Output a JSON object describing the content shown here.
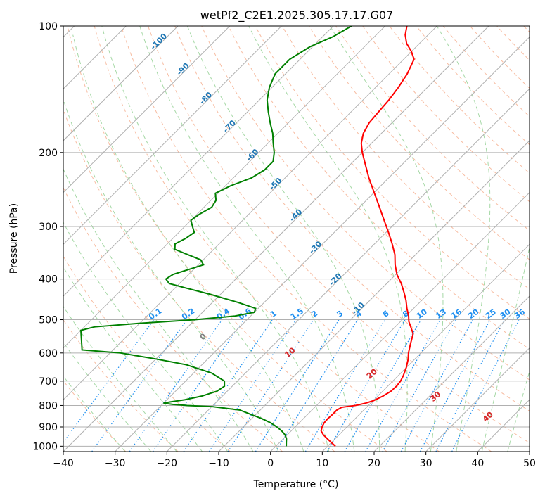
{
  "chart_data": {
    "type": "line",
    "title": "wetPf2_C2E1.2025.305.17.17.G07",
    "xlabel": "Temperature (°C)",
    "ylabel": "Pressure (hPa)",
    "xlim": [
      -40,
      50
    ],
    "ylim": [
      1030,
      100
    ],
    "yscale": "log",
    "skew": 45,
    "grid": true,
    "x_ticks": [
      "−40",
      "−30",
      "−20",
      "−10",
      "0",
      "10",
      "20",
      "30",
      "40",
      "50"
    ],
    "y_ticks": [
      {
        "p": 100,
        "label": "100"
      },
      {
        "p": 200,
        "label": "200"
      },
      {
        "p": 300,
        "label": "300"
      },
      {
        "p": 400,
        "label": "400"
      },
      {
        "p": 500,
        "label": "500"
      },
      {
        "p": 600,
        "label": "600"
      },
      {
        "p": 700,
        "label": "700"
      },
      {
        "p": 800,
        "label": "800"
      },
      {
        "p": 900,
        "label": "900"
      },
      {
        "p": 1000,
        "label": "1000"
      }
    ],
    "colors": {
      "temperature": "#ff0000",
      "dewpoint": "#008000",
      "isotherm": "#b0b0b0",
      "dry_adiabat": "#f4a582",
      "moist_adiabat": "#8fce8f",
      "mixing_ratio": "#1f8ff0",
      "isotherm_label": "#1f77b4",
      "mixing_label": "#1f8ff0",
      "moist_label": "#d62728",
      "zero_label": "#808080"
    },
    "temperature": [
      {
        "p": 1000,
        "t": 11.5
      },
      {
        "p": 980,
        "t": 10.0
      },
      {
        "p": 960,
        "t": 8.5
      },
      {
        "p": 940,
        "t": 7.0
      },
      {
        "p": 920,
        "t": 5.8
      },
      {
        "p": 900,
        "t": 5.2
      },
      {
        "p": 880,
        "t": 4.8
      },
      {
        "p": 860,
        "t": 4.7
      },
      {
        "p": 840,
        "t": 4.8
      },
      {
        "p": 820,
        "t": 4.8
      },
      {
        "p": 808,
        "t": 5.2
      },
      {
        "p": 800,
        "t": 7.5
      },
      {
        "p": 790,
        "t": 9.0
      },
      {
        "p": 780,
        "t": 10.0
      },
      {
        "p": 760,
        "t": 11.0
      },
      {
        "p": 740,
        "t": 11.6
      },
      {
        "p": 720,
        "t": 11.7
      },
      {
        "p": 700,
        "t": 11.5
      },
      {
        "p": 680,
        "t": 11.0
      },
      {
        "p": 650,
        "t": 10.0
      },
      {
        "p": 620,
        "t": 8.7
      },
      {
        "p": 600,
        "t": 7.6
      },
      {
        "p": 570,
        "t": 6.2
      },
      {
        "p": 540,
        "t": 4.8
      },
      {
        "p": 520,
        "t": 3.0
      },
      {
        "p": 505,
        "t": 1.6
      },
      {
        "p": 490,
        "t": 0.5
      },
      {
        "p": 470,
        "t": -1.3
      },
      {
        "p": 450,
        "t": -3.0
      },
      {
        "p": 430,
        "t": -5.0
      },
      {
        "p": 410,
        "t": -7.2
      },
      {
        "p": 390,
        "t": -9.8
      },
      {
        "p": 370,
        "t": -12.0
      },
      {
        "p": 350,
        "t": -14.0
      },
      {
        "p": 330,
        "t": -16.6
      },
      {
        "p": 310,
        "t": -19.5
      },
      {
        "p": 290,
        "t": -22.7
      },
      {
        "p": 270,
        "t": -26.1
      },
      {
        "p": 250,
        "t": -29.8
      },
      {
        "p": 230,
        "t": -33.8
      },
      {
        "p": 215,
        "t": -36.8
      },
      {
        "p": 200,
        "t": -40.0
      },
      {
        "p": 190,
        "t": -42.0
      },
      {
        "p": 180,
        "t": -43.5
      },
      {
        "p": 170,
        "t": -44.4
      },
      {
        "p": 160,
        "t": -44.7
      },
      {
        "p": 150,
        "t": -45.0
      },
      {
        "p": 140,
        "t": -45.6
      },
      {
        "p": 130,
        "t": -46.5
      },
      {
        "p": 120,
        "t": -48.0
      },
      {
        "p": 115,
        "t": -50.0
      },
      {
        "p": 110,
        "t": -52.5
      },
      {
        "p": 105,
        "t": -54.4
      },
      {
        "p": 100,
        "t": -55.8
      }
    ],
    "dewpoint": [
      {
        "p": 1000,
        "t": 2.0
      },
      {
        "p": 980,
        "t": 1.3
      },
      {
        "p": 960,
        "t": 0.6
      },
      {
        "p": 940,
        "t": -0.4
      },
      {
        "p": 920,
        "t": -1.8
      },
      {
        "p": 900,
        "t": -3.5
      },
      {
        "p": 880,
        "t": -5.5
      },
      {
        "p": 860,
        "t": -8.0
      },
      {
        "p": 840,
        "t": -11.0
      },
      {
        "p": 820,
        "t": -14.0
      },
      {
        "p": 805,
        "t": -20.0
      },
      {
        "p": 800,
        "t": -25.0
      },
      {
        "p": 795,
        "t": -28.0
      },
      {
        "p": 790,
        "t": -30.0
      },
      {
        "p": 785,
        "t": -29.0
      },
      {
        "p": 775,
        "t": -26.5
      },
      {
        "p": 760,
        "t": -24.0
      },
      {
        "p": 740,
        "t": -22.0
      },
      {
        "p": 720,
        "t": -21.5
      },
      {
        "p": 700,
        "t": -22.5
      },
      {
        "p": 670,
        "t": -26.5
      },
      {
        "p": 640,
        "t": -33.0
      },
      {
        "p": 620,
        "t": -40.0
      },
      {
        "p": 600,
        "t": -48.0
      },
      {
        "p": 590,
        "t": -56.0
      },
      {
        "p": 530,
        "t": -60.0
      },
      {
        "p": 520,
        "t": -58.0
      },
      {
        "p": 510,
        "t": -50.0
      },
      {
        "p": 500,
        "t": -40.0
      },
      {
        "p": 490,
        "t": -33.0
      },
      {
        "p": 480,
        "t": -30.0
      },
      {
        "p": 470,
        "t": -30.5
      },
      {
        "p": 455,
        "t": -35.0
      },
      {
        "p": 435,
        "t": -42.0
      },
      {
        "p": 420,
        "t": -48.0
      },
      {
        "p": 410,
        "t": -52.0
      },
      {
        "p": 400,
        "t": -53.5
      },
      {
        "p": 390,
        "t": -53.0
      },
      {
        "p": 380,
        "t": -51.0
      },
      {
        "p": 370,
        "t": -49.0
      },
      {
        "p": 360,
        "t": -50.5
      },
      {
        "p": 350,
        "t": -54.0
      },
      {
        "p": 340,
        "t": -57.5
      },
      {
        "p": 330,
        "t": -58.5
      },
      {
        "p": 320,
        "t": -57.5
      },
      {
        "p": 310,
        "t": -57.0
      },
      {
        "p": 300,
        "t": -58.5
      },
      {
        "p": 290,
        "t": -60.0
      },
      {
        "p": 280,
        "t": -59.5
      },
      {
        "p": 270,
        "t": -58.5
      },
      {
        "p": 260,
        "t": -59.0
      },
      {
        "p": 250,
        "t": -60.5
      },
      {
        "p": 240,
        "t": -59.0
      },
      {
        "p": 230,
        "t": -56.5
      },
      {
        "p": 220,
        "t": -55.5
      },
      {
        "p": 210,
        "t": -55.5
      },
      {
        "p": 200,
        "t": -57.0
      },
      {
        "p": 190,
        "t": -59.0
      },
      {
        "p": 180,
        "t": -61.0
      },
      {
        "p": 170,
        "t": -63.5
      },
      {
        "p": 160,
        "t": -66.0
      },
      {
        "p": 150,
        "t": -68.5
      },
      {
        "p": 140,
        "t": -70.5
      },
      {
        "p": 130,
        "t": -72.0
      },
      {
        "p": 120,
        "t": -72.0
      },
      {
        "p": 112,
        "t": -70.5
      },
      {
        "p": 106,
        "t": -68.0
      },
      {
        "p": 100,
        "t": -66.5
      }
    ],
    "isotherm_labels": [
      {
        "t": -100,
        "label": "-100"
      },
      {
        "t": -90,
        "label": "-90"
      },
      {
        "t": -80,
        "label": "-80"
      },
      {
        "t": -70,
        "label": "-70"
      },
      {
        "t": -60,
        "label": "-60"
      },
      {
        "t": -50,
        "label": "-50"
      },
      {
        "t": -40,
        "label": "-40"
      },
      {
        "t": -30,
        "label": "-30"
      },
      {
        "t": -20,
        "label": "-20"
      },
      {
        "t": -10,
        "label": "-10"
      }
    ],
    "mixing_ratio_labels": [
      {
        "w": 0.1,
        "label": "0.1"
      },
      {
        "w": 0.2,
        "label": "0.2"
      },
      {
        "w": 0.4,
        "label": "0.4"
      },
      {
        "w": 0.6,
        "label": "0.6"
      },
      {
        "w": 1,
        "label": "1"
      },
      {
        "w": 1.5,
        "label": "1.5"
      },
      {
        "w": 2,
        "label": "2"
      },
      {
        "w": 3,
        "label": "3"
      },
      {
        "w": 4,
        "label": "4"
      },
      {
        "w": 6,
        "label": "6"
      },
      {
        "w": 8,
        "label": "8"
      },
      {
        "w": 10,
        "label": "10"
      },
      {
        "w": 13,
        "label": "13"
      },
      {
        "w": 16,
        "label": "16"
      },
      {
        "w": 20,
        "label": "20"
      },
      {
        "w": 25,
        "label": "25"
      },
      {
        "w": 30,
        "label": "30"
      },
      {
        "w": 36,
        "label": "36"
      }
    ],
    "moist_adiabat_labels": [
      {
        "theta_w": 0,
        "label": "0"
      },
      {
        "theta_w": 10,
        "label": "10"
      },
      {
        "theta_w": 20,
        "label": "20"
      },
      {
        "theta_w": 30,
        "label": "30"
      },
      {
        "theta_w": 40,
        "label": "40"
      }
    ]
  }
}
